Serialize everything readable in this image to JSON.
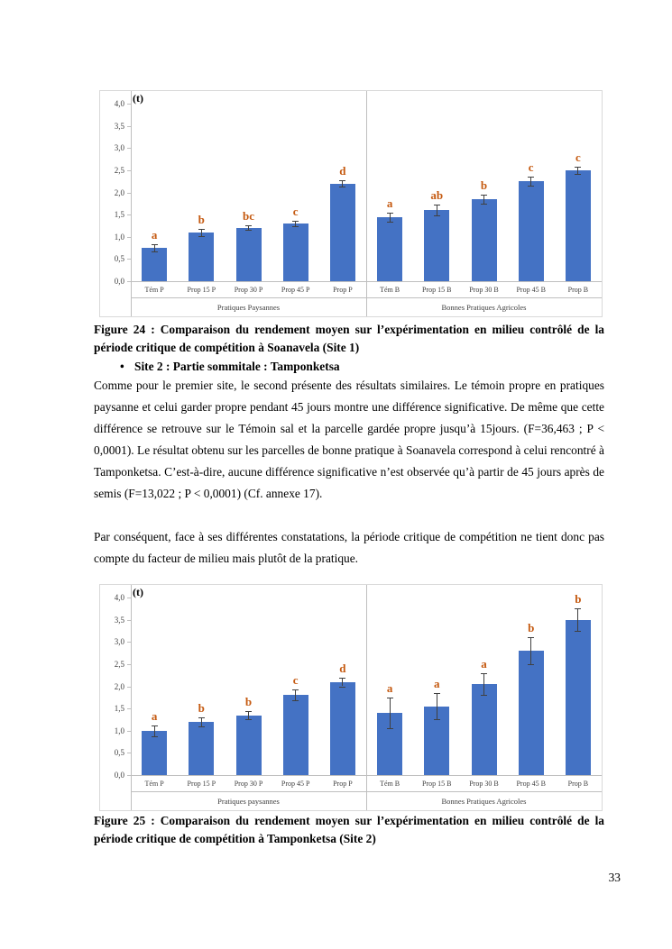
{
  "page_number": "33",
  "colors": {
    "bar": "#4472C4",
    "significance_letter": "#C55A11",
    "axis_line": "#BFBFBF",
    "chart_border": "#D9D9D9"
  },
  "figure24": {
    "caption": "Figure 24 : Comparaison du rendement moyen sur l’expérimentation en milieu contrôlé de la période critique de compétition à Soanavela (Site 1)"
  },
  "bullet": {
    "glyph": "•",
    "label": "Site 2 : Partie sommitale : Tamponketsa"
  },
  "paragraphs": {
    "p1": "Comme pour le premier site, le second présente des résultats similaires. Le témoin propre en pratiques paysanne et celui garder propre pendant 45 jours montre une différence significative. De même que cette différence se retrouve sur le Témoin sal et la parcelle gardée propre jusqu’à 15jours. (F=36,463 ; P < 0,0001). Le résultat obtenu sur les parcelles de bonne pratique à Soanavela correspond à celui rencontré à Tamponketsa. C’est-à-dire, aucune différence significative n’est observée qu’à partir de 45 jours après de semis (F=13,022 ; P < 0,0001) (Cf. annexe 17).",
    "p2": "Par conséquent, face à ses différentes constatations, la période critique de compétition ne tient donc pas compte du facteur de milieu mais plutôt de la pratique."
  },
  "figure25": {
    "caption": "Figure 25 : Comparaison du rendement moyen sur l’expérimentation en milieu contrôlé de la période critique de compétition à Tamponketsa (Site 2)"
  },
  "chart_data": [
    {
      "type": "bar",
      "title": "",
      "unit_label": "(t)",
      "ylabel": "",
      "xlabel": "",
      "ylim": [
        0,
        4
      ],
      "yticks": [
        "0,0",
        "0,5",
        "1,0",
        "1,5",
        "2,0",
        "2,5",
        "3,0",
        "3,5",
        "4,0"
      ],
      "grid": false,
      "legend": "none",
      "groups": [
        {
          "label": "Pratiques Paysannes",
          "categories": [
            "Tém P",
            "Prop 15 P",
            "Prop 30 P",
            "Prop 45 P",
            "Prop P"
          ],
          "values": [
            0.75,
            1.1,
            1.2,
            1.3,
            2.2
          ],
          "errors": [
            0.08,
            0.08,
            0.05,
            0.06,
            0.07
          ],
          "letters": [
            "a",
            "b",
            "bc",
            "c",
            "d"
          ]
        },
        {
          "label": "Bonnes Pratiques Agricoles",
          "categories": [
            "Tém B",
            "Prop 15 B",
            "Prop 30 B",
            "Prop 45 B",
            "Prop B"
          ],
          "values": [
            1.45,
            1.6,
            1.85,
            2.25,
            2.5
          ],
          "errors": [
            0.1,
            0.12,
            0.1,
            0.1,
            0.08
          ],
          "letters": [
            "a",
            "ab",
            "b",
            "c",
            "c"
          ]
        }
      ]
    },
    {
      "type": "bar",
      "title": "",
      "unit_label": "(t)",
      "ylabel": "",
      "xlabel": "",
      "ylim": [
        0,
        4
      ],
      "yticks": [
        "0,0",
        "0,5",
        "1,0",
        "1,5",
        "2,0",
        "2,5",
        "3,0",
        "3,5",
        "4,0"
      ],
      "grid": false,
      "legend": "none",
      "groups": [
        {
          "label": "Pratiques paysannes",
          "categories": [
            "Tém P",
            "Prop 15 P",
            "Prop 30 P",
            "Prop 45 P",
            "Prop P"
          ],
          "values": [
            1.0,
            1.2,
            1.35,
            1.8,
            2.1
          ],
          "errors": [
            0.12,
            0.1,
            0.1,
            0.12,
            0.1
          ],
          "letters": [
            "a",
            "b",
            "b",
            "c",
            "d"
          ]
        },
        {
          "label": "Bonnes Pratiques Agricoles",
          "categories": [
            "Tém B",
            "Prop 15 B",
            "Prop 30 B",
            "Prop 45 B",
            "Prop B"
          ],
          "values": [
            1.4,
            1.55,
            2.05,
            2.8,
            3.5
          ],
          "errors": [
            0.35,
            0.3,
            0.25,
            0.3,
            0.25
          ],
          "letters": [
            "a",
            "a",
            "a",
            "b",
            "b"
          ]
        }
      ]
    }
  ]
}
